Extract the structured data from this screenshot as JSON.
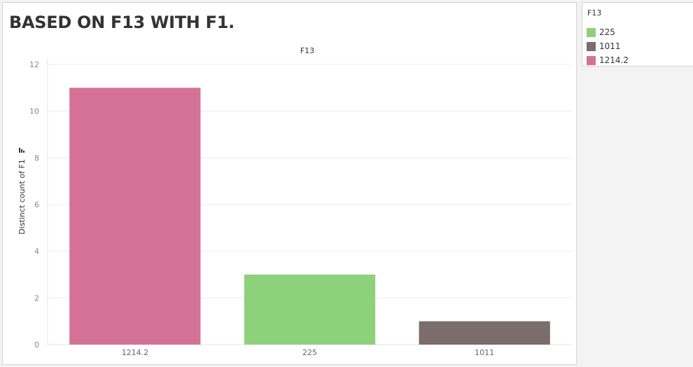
{
  "title": "BASED ON F13 WITH F1.",
  "legend": {
    "title": "F13",
    "items": [
      {
        "label": "225",
        "color": "#8ed17b"
      },
      {
        "label": "1011",
        "color": "#7a6d6b"
      },
      {
        "label": "1214.2",
        "color": "#d37295"
      }
    ]
  },
  "chart_data": {
    "type": "bar",
    "title": "",
    "header": "F13",
    "categories": [
      "1214.2",
      "225",
      "1011"
    ],
    "values": [
      11,
      3,
      1
    ],
    "colors": [
      "#d37295",
      "#8ed17b",
      "#7a6d6b"
    ],
    "xlabel": "",
    "ylabel": "Distinct count of F1",
    "ylim": [
      0,
      12
    ],
    "yticks": [
      0,
      2,
      4,
      6,
      8,
      10,
      12
    ],
    "grid": true,
    "legend_position": "right"
  }
}
